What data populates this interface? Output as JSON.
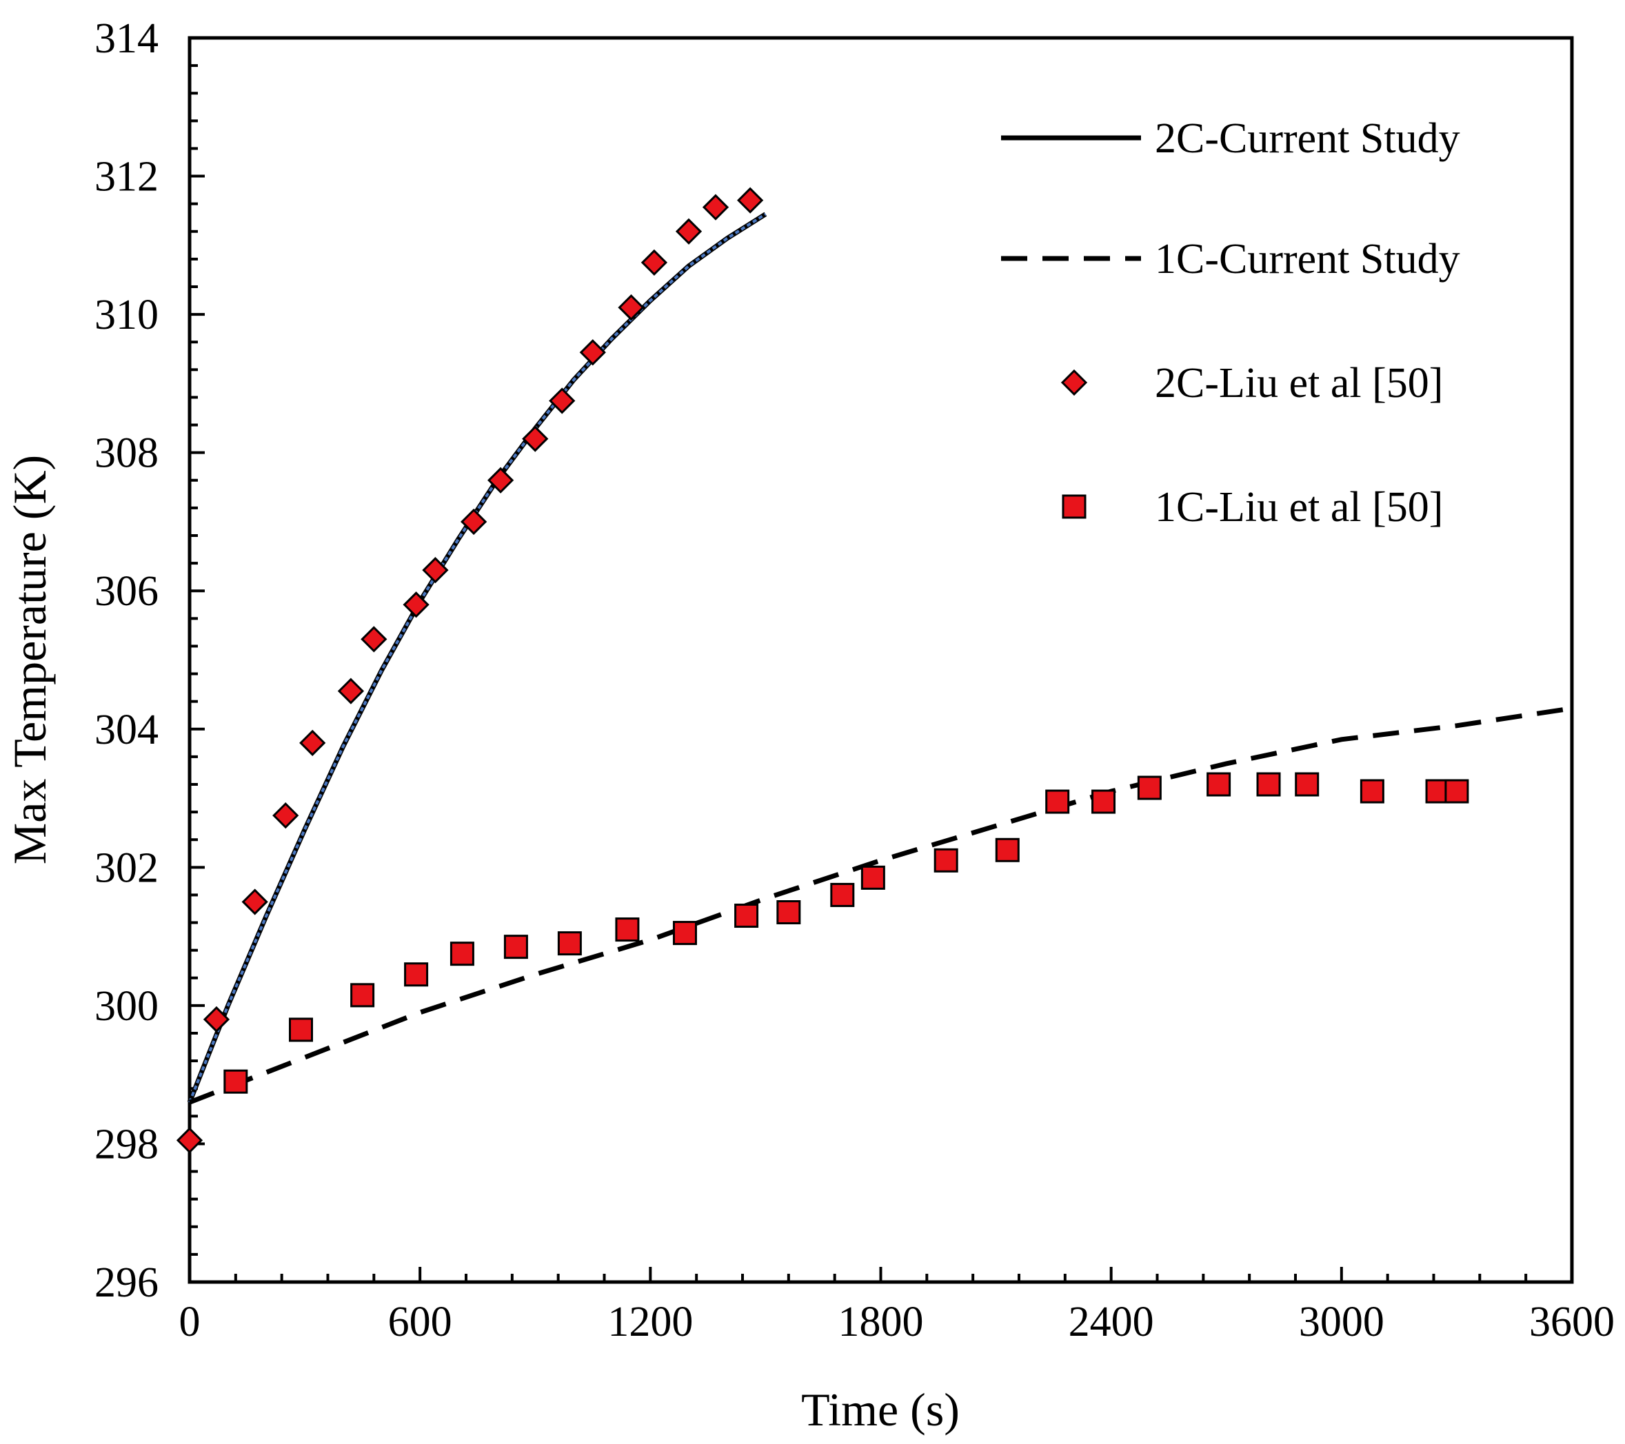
{
  "chart_data": {
    "type": "scatter",
    "title": "",
    "xlabel": "Time (s)",
    "ylabel": "Max Temperature (K)",
    "xlim": [
      0,
      3600
    ],
    "ylim": [
      296,
      314
    ],
    "xticks": [
      0,
      600,
      1200,
      1800,
      2400,
      3000,
      3600
    ],
    "yticks": [
      296,
      298,
      300,
      302,
      304,
      306,
      308,
      310,
      312,
      314
    ],
    "grid": false,
    "legend_position": "top-right",
    "series": [
      {
        "name": "2C-Current Study",
        "kind": "line",
        "style": "solid",
        "color": "#000000",
        "overlay_color": "#4a78c2",
        "x": [
          0,
          100,
          200,
          300,
          400,
          500,
          600,
          700,
          800,
          900,
          1000,
          1100,
          1200,
          1300,
          1400,
          1500
        ],
        "y": [
          298.6,
          300.0,
          301.3,
          302.55,
          303.75,
          304.85,
          305.85,
          306.75,
          307.6,
          308.35,
          309.05,
          309.65,
          310.2,
          310.7,
          311.1,
          311.45
        ]
      },
      {
        "name": "1C-Current Study",
        "kind": "line",
        "style": "dashed",
        "color": "#000000",
        "x": [
          0,
          300,
          600,
          900,
          1200,
          1500,
          1800,
          2100,
          2400,
          2700,
          3000,
          3300,
          3600
        ],
        "y": [
          298.6,
          299.25,
          299.9,
          300.45,
          300.95,
          301.55,
          302.1,
          302.6,
          303.1,
          303.5,
          303.85,
          304.05,
          304.3
        ]
      },
      {
        "name": "2C-Liu et al [50]",
        "kind": "marker",
        "marker": "diamond",
        "color": "#e8141b",
        "x": [
          0,
          70,
          170,
          250,
          320,
          420,
          480,
          590,
          640,
          740,
          810,
          900,
          970,
          1050,
          1150,
          1210,
          1300,
          1370,
          1460
        ],
        "y": [
          298.05,
          299.8,
          301.5,
          302.75,
          303.8,
          304.55,
          305.3,
          305.8,
          306.3,
          307.0,
          307.6,
          308.2,
          308.75,
          309.45,
          310.1,
          310.75,
          311.2,
          311.55,
          311.65
        ]
      },
      {
        "name": "1C-Liu et al [50]",
        "kind": "marker",
        "marker": "square",
        "color": "#e8141b",
        "x": [
          120,
          290,
          450,
          590,
          710,
          850,
          990,
          1140,
          1290,
          1450,
          1560,
          1700,
          1780,
          1970,
          2130,
          2260,
          2380,
          2500,
          2680,
          2810,
          2910,
          3080,
          3250,
          3300
        ],
        "y": [
          298.9,
          299.65,
          300.15,
          300.45,
          300.75,
          300.85,
          300.9,
          301.1,
          301.05,
          301.3,
          301.35,
          301.6,
          301.85,
          302.1,
          302.25,
          302.95,
          302.95,
          303.15,
          303.2,
          303.2,
          303.2,
          303.1,
          303.1,
          303.1
        ]
      }
    ]
  }
}
